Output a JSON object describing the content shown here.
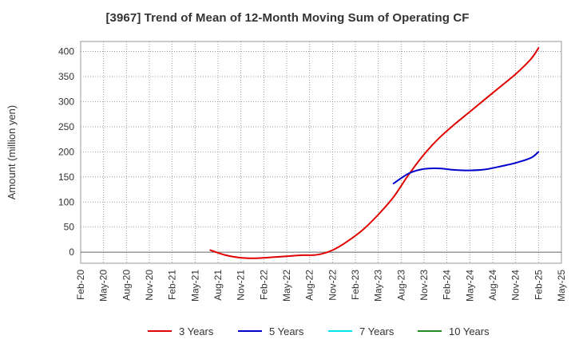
{
  "chart_data": {
    "type": "line",
    "title": "[3967]  Trend of Mean of 12-Month Moving Sum of Operating CF",
    "xlabel": "",
    "ylabel": "Amount (million yen)",
    "ylim": [
      -22,
      420
    ],
    "yticks": [
      0,
      50,
      100,
      150,
      200,
      250,
      300,
      350,
      400
    ],
    "grid": true,
    "legend_position": "bottom",
    "x_ticks": [
      "Feb-20",
      "May-20",
      "Aug-20",
      "Nov-20",
      "Feb-21",
      "May-21",
      "Aug-21",
      "Nov-21",
      "Feb-22",
      "May-22",
      "Aug-22",
      "Nov-22",
      "Feb-23",
      "May-23",
      "Aug-23",
      "Nov-23",
      "Feb-24",
      "May-24",
      "Aug-24",
      "Nov-24",
      "Feb-25",
      "May-25"
    ],
    "series": [
      {
        "name": "3 Years",
        "color": "#e00000",
        "x": [
          "Jul-21",
          "Sep-21",
          "Nov-21",
          "Jan-22",
          "Mar-22",
          "May-22",
          "Jul-22",
          "Sep-22",
          "Nov-22",
          "Jan-23",
          "Mar-23",
          "May-23",
          "Jul-23",
          "Sep-23",
          "Nov-23",
          "Jan-24",
          "Mar-24",
          "May-24",
          "Jul-24",
          "Sep-24",
          "Nov-24",
          "Jan-25",
          "Feb-25"
        ],
        "values": [
          4,
          -6,
          -11,
          -12,
          -10,
          -8,
          -6,
          -5,
          4,
          22,
          45,
          75,
          110,
          155,
          195,
          228,
          255,
          280,
          305,
          330,
          355,
          385,
          407
        ]
      },
      {
        "name": "5 Years",
        "color": "#0000cc",
        "x": [
          "Jul-23",
          "Sep-23",
          "Nov-23",
          "Jan-24",
          "Mar-24",
          "May-24",
          "Jul-24",
          "Sep-24",
          "Nov-24",
          "Jan-25",
          "Feb-25"
        ],
        "values": [
          137,
          157,
          166,
          167,
          164,
          163,
          165,
          171,
          178,
          188,
          200
        ]
      },
      {
        "name": "7 Years",
        "color": "#00e5ee",
        "x": [],
        "values": []
      },
      {
        "name": "10 Years",
        "color": "#228b22",
        "x": [],
        "values": []
      }
    ]
  }
}
